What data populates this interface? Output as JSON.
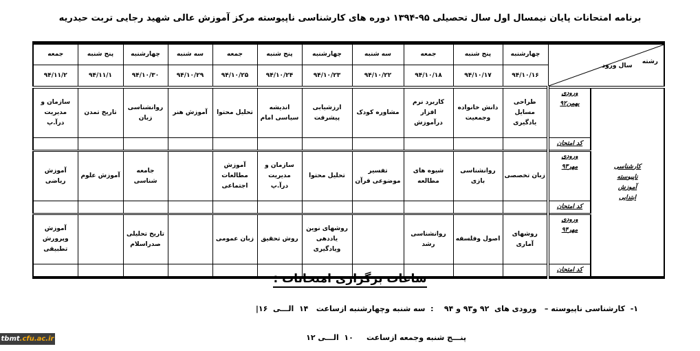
{
  "title": "برنامه امتحانات پایان نیمسال اول سال تحصیلی ۹۵-۱۳۹۴ دوره های کارشناسی ناپیوسته مرکز آموزش عالی شهید رجایی تربت حیدریه",
  "table": {
    "corner_major": "رشته",
    "corner_year": "سال ورود",
    "days": [
      "چهارشنبه",
      "پنج شنبه",
      "جمعه",
      "سه شنبه",
      "چهارشنبه",
      "پنج شنبه",
      "جمعه",
      "سه شنبه",
      "چهارشنبه",
      "پنج شنبه",
      "جمعه"
    ],
    "dates": [
      "۹۴/۱۰/۱۶",
      "۹۴/۱۰/۱۷",
      "۹۴/۱۰/۱۸",
      "۹۴/۱۰/۲۲",
      "۹۴/۱۰/۲۳",
      "۹۴/۱۰/۲۴",
      "۹۴/۱۰/۲۵",
      "۹۴/۱۰/۲۹",
      "۹۴/۱۰/۳۰",
      "۹۴/۱۱/۱",
      "۹۴/۱۱/۲"
    ],
    "major_lines": [
      "کارشناسی",
      "ناپیوسته",
      "آموزش",
      "ابتدایی"
    ],
    "code_label": "کد امتحان",
    "groups": [
      {
        "entry": [
          "ورودی",
          "بهمن۹۲"
        ],
        "courses": [
          "طراحی مسایل یادگیری",
          "دانش خانواده وجمعیت",
          "کاربرد نرم افزار درآموزش",
          "مشاوره کودک",
          "ارزشیابی پیشرفت",
          "اندیشه سیاسی امام",
          "تحلیل محتوا",
          "آموزش هنر",
          "روانشناسی زبان",
          "تاریخ تمدن",
          "سازمان و مدیریت درآ.پ"
        ]
      },
      {
        "entry": [
          "ورودی",
          "مهر۹۳"
        ],
        "courses": [
          "زبان تخصصی",
          "روانشناسی بازی",
          "شیوه های مطالعه",
          "تفسیر موضوعی قرآن",
          "تحلیل محتوا",
          "سازمان و مدیریت درآ.پ",
          "آموزش مطالعات اجتماعی",
          "",
          "جامعه شناسی",
          "آموزش علوم",
          "آموزش ریاضی"
        ]
      },
      {
        "entry": [
          "ورودی",
          "مهر۹۴"
        ],
        "courses": [
          "روشهای آماری",
          "اصول وفلسفه",
          "روانشناسی رشد",
          "",
          "روشهای نوین یاددهی ویادگیری",
          "روش تحقیق",
          "زبان عمومی",
          "",
          "تاریخ تحلیلی صدراسلام",
          "",
          "آموزش وپرورش تطبیقی"
        ]
      }
    ]
  },
  "hours": {
    "heading": "ساعات برگزاری امتحانات :",
    "line1": "۱-  کارشناسی ناپیوسته –   ورودی های  ۹۲ و۹۳ و ۹۴    :  سه شنبه وچهارشنبه ازساعت   ۱۴  الـــی  ۱۶|",
    "line2": "پنـــج شنبه وجمعه ازساعت     ۱۰  الـــی ۱۲"
  },
  "watermark": "tbmt.cfu.ac.ir"
}
